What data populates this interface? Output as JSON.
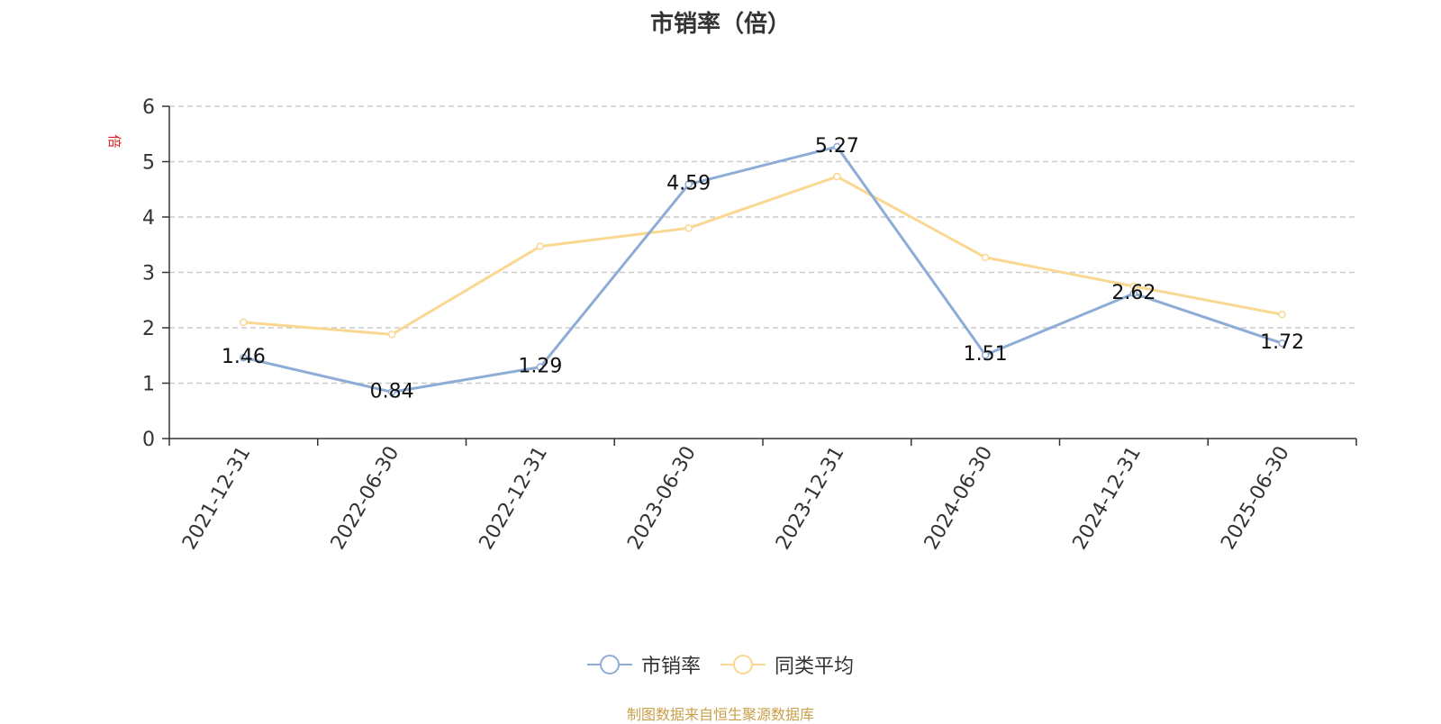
{
  "colors": {
    "series_1": "#8eadd6",
    "series_2": "#fad892",
    "grid": "#cccccc",
    "axis": "#333333",
    "unit": "#e02020",
    "source": "#c8a04a"
  },
  "chart_data": {
    "type": "line",
    "title": "市销率（倍）",
    "ylabel": "倍",
    "xlabel": "",
    "categories": [
      "2021-12-31",
      "2022-06-30",
      "2022-12-31",
      "2023-06-30",
      "2023-12-31",
      "2024-06-30",
      "2024-12-31",
      "2025-06-30"
    ],
    "ylim": [
      0,
      6
    ],
    "yticks": [
      0,
      1,
      2,
      3,
      4,
      5,
      6
    ],
    "grid": true,
    "legend_position": "bottom",
    "series": [
      {
        "name": "市销率",
        "values": [
          1.46,
          0.84,
          1.29,
          4.59,
          5.27,
          1.51,
          2.62,
          1.72
        ],
        "labels": [
          "1.46",
          "0.84",
          "1.29",
          "4.59",
          "5.27",
          "1.51",
          "2.62",
          "1.72"
        ]
      },
      {
        "name": "同类平均",
        "values": [
          2.1,
          1.88,
          3.47,
          3.8,
          4.73,
          3.27,
          2.75,
          2.24
        ]
      }
    ]
  },
  "footer": {
    "source": "制图数据来自恒生聚源数据库"
  }
}
